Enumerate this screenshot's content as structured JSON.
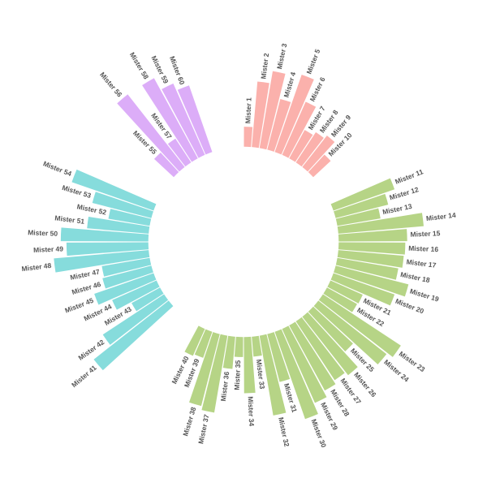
{
  "chart_data": {
    "type": "circular_bar",
    "ylim": [
      -100,
      120
    ],
    "series": [
      {
        "color": "#fbb1ac",
        "categories": [
          "Mister 1",
          "Mister 2",
          "Mister 3",
          "Mister 4",
          "Mister 5",
          "Mister 6",
          "Mister 7",
          "Mister 8",
          "Mister 9",
          "Mister 10"
        ],
        "values": [
          21,
          69,
          82,
          55,
          86,
          61,
          34,
          38,
          42,
          25
        ]
      },
      {
        "color": "#b6d486",
        "categories": [
          "Mister 11",
          "Mister 12",
          "Mister 13",
          "Mister 14",
          "Mister 15",
          "Mister 16",
          "Mister 17",
          "Mister 18",
          "Mister 19",
          "Mister 20",
          "Mister 21",
          "Mister 22",
          "Mister 23",
          "Mister 24",
          "Mister 25",
          "Mister 26",
          "Mister 27",
          "Mister 28",
          "Mister 29",
          "Mister 30",
          "Mister 31",
          "Mister 32",
          "Mister 33",
          "Mister 34",
          "Mister 35",
          "Mister 36",
          "Mister 37",
          "Mister 38",
          "Mister 39",
          "Mister 40"
        ],
        "values": [
          68,
          57,
          46,
          90,
          72,
          70,
          69,
          65,
          79,
          68,
          37,
          36,
          98,
          91,
          57,
          78,
          74,
          78,
          85,
          97,
          52,
          85,
          21,
          59,
          21,
          34,
          82,
          78,
          29,
          31
        ]
      },
      {
        "color": "#86dcdc",
        "categories": [
          "Mister 41",
          "Mister 42",
          "Mister 43",
          "Mister 44",
          "Mister 45",
          "Mister 46",
          "Mister 47",
          "Mister 48",
          "Mister 49",
          "Mister 50",
          "Mister 51",
          "Mister 52",
          "Mister 53",
          "Mister 54"
        ],
        "values": [
          100,
          77,
          34,
          51,
          66,
          53,
          51,
          100,
          86,
          92,
          65,
          44,
          64,
          91
        ]
      },
      {
        "color": "#dcadf8",
        "categories": [
          "Mister 55",
          "Mister 56",
          "Mister 57",
          "Mister 58",
          "Mister 59",
          "Mister 60"
        ],
        "values": [
          28,
          97,
          30,
          96,
          82,
          74
        ]
      }
    ]
  }
}
